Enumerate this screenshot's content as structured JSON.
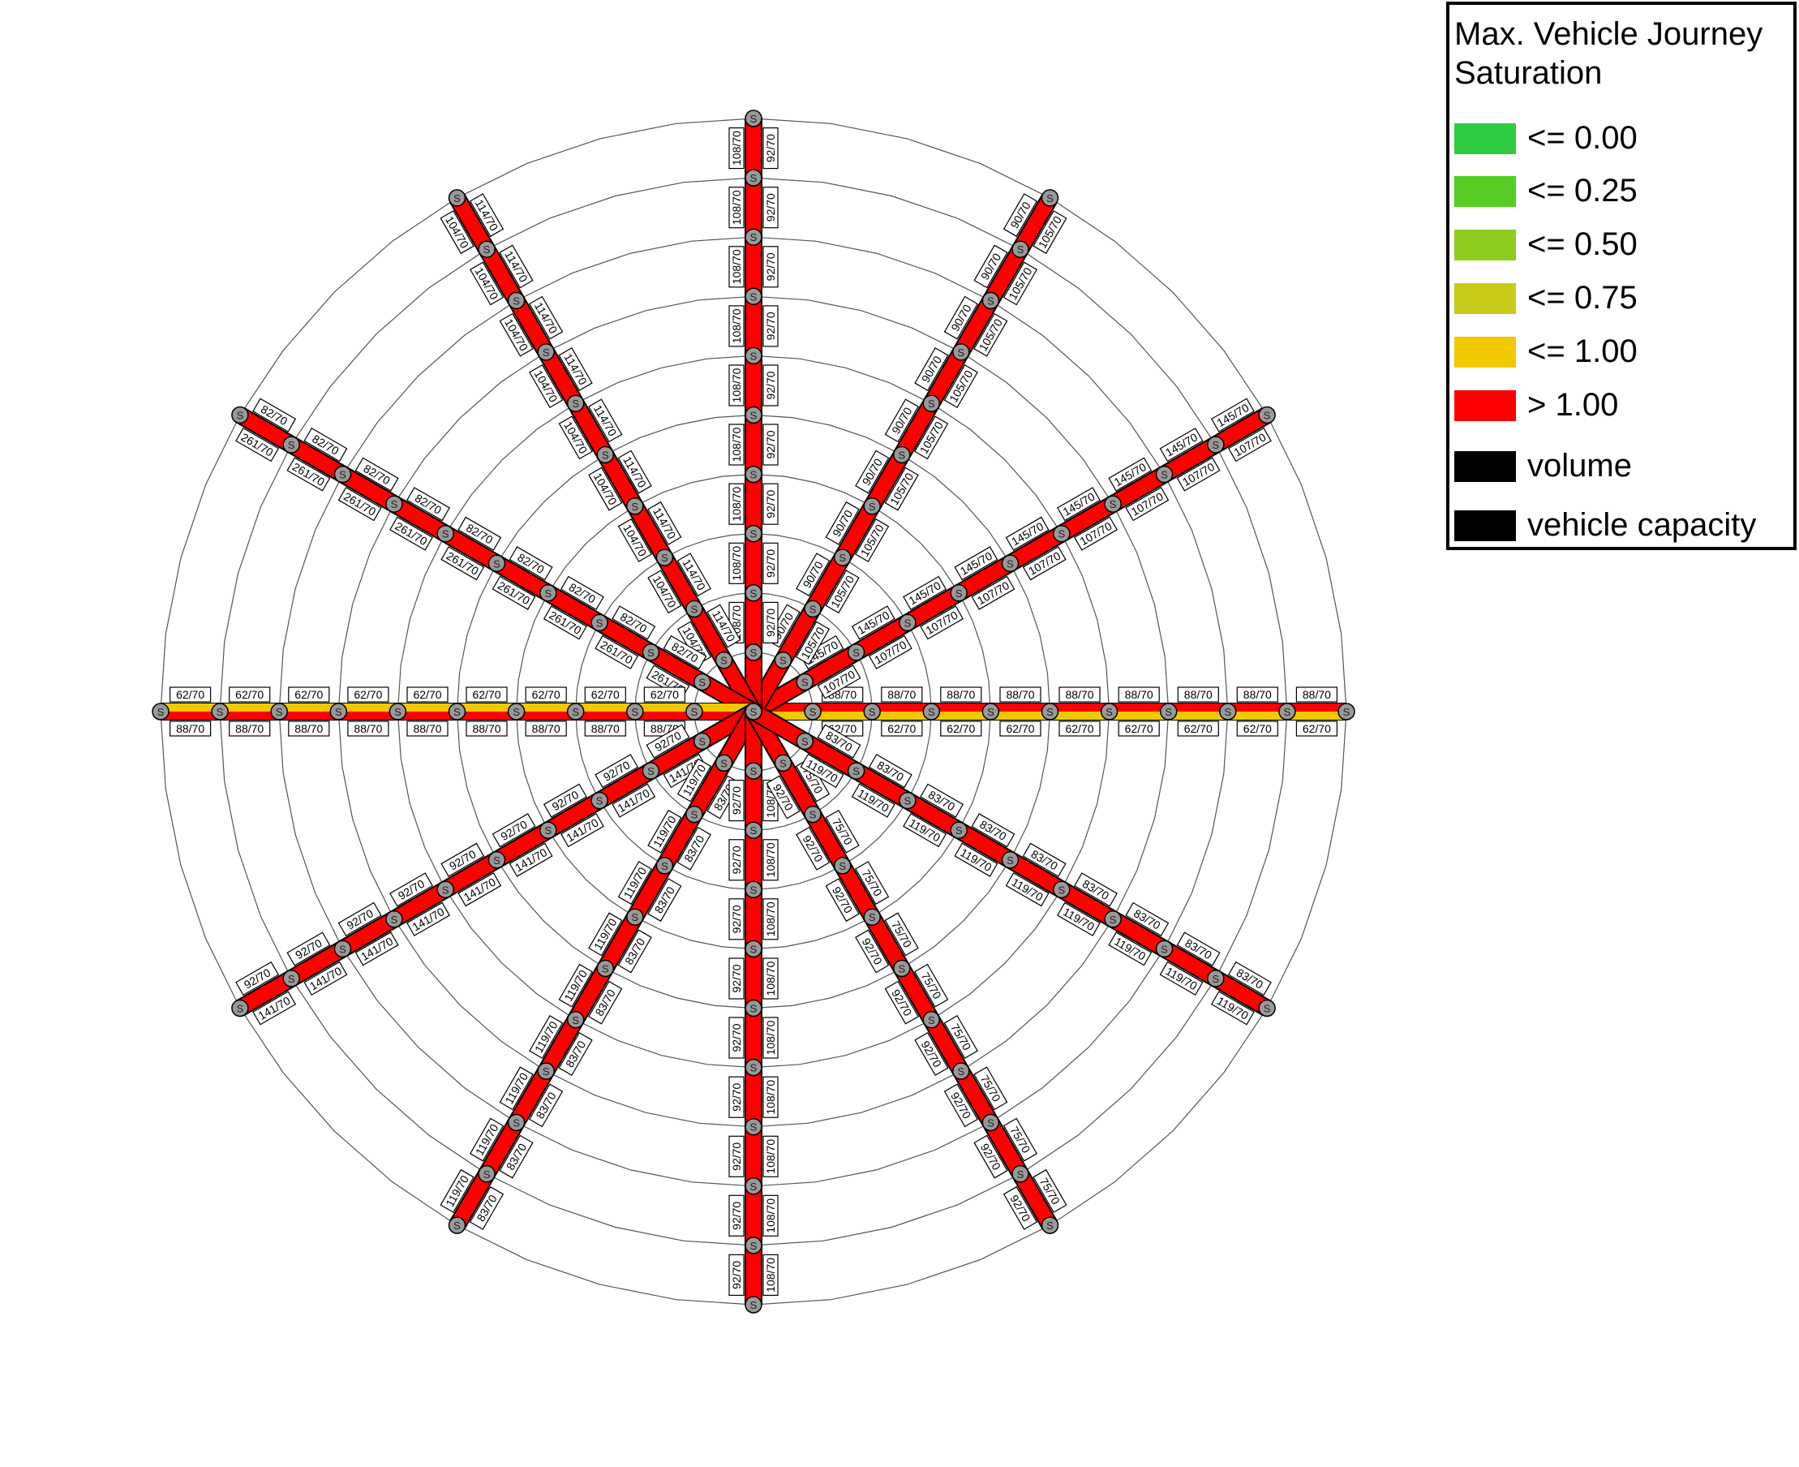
{
  "legend": {
    "title_line1": "Max. Vehicle Journey",
    "title_line2": "Saturation",
    "items": [
      {
        "label": "<= 0.00",
        "color": "#2ecc40"
      },
      {
        "label": "<= 0.25",
        "color": "#55cc22"
      },
      {
        "label": "<= 0.50",
        "color": "#8fcc1e"
      },
      {
        "label": "<= 0.75",
        "color": "#c8cc18"
      },
      {
        "label": "<= 1.00",
        "color": "#f2c800"
      },
      {
        "label": "> 1.00",
        "color": "#ff0000"
      },
      {
        "label": "volume",
        "color": "#000000"
      },
      {
        "label": "vehicle capacity",
        "color": "#000000"
      }
    ]
  },
  "network": {
    "node_symbol": "S",
    "ring_count": 10,
    "spokes": [
      {
        "angle_deg": 0,
        "outer_label": "88/70",
        "inner_label": "62/70",
        "band": "yellow"
      },
      {
        "angle_deg": -30,
        "outer_label": "145/70",
        "inner_label": "107/70",
        "band": "red"
      },
      {
        "angle_deg": -60,
        "outer_label": "90/70",
        "inner_label": "105/70",
        "band": "red"
      },
      {
        "angle_deg": -90,
        "outer_label": "108/70",
        "inner_label": "92/70",
        "band": "red"
      },
      {
        "angle_deg": -120,
        "outer_label": "104/70",
        "inner_label": "114/70",
        "band": "red"
      },
      {
        "angle_deg": -150,
        "outer_label": "261/70",
        "inner_label": "82/70",
        "band": "red"
      },
      {
        "angle_deg": 180,
        "outer_label": "88/70",
        "inner_label": "62/70",
        "band": "yellow"
      },
      {
        "angle_deg": 150,
        "outer_label": "141/70",
        "inner_label": "92/70",
        "band": "red"
      },
      {
        "angle_deg": 120,
        "outer_label": "83/70",
        "inner_label": "119/70",
        "band": "red"
      },
      {
        "angle_deg": 90,
        "outer_label": "108/70",
        "inner_label": "92/70",
        "band": "red"
      },
      {
        "angle_deg": 60,
        "outer_label": "75/70",
        "inner_label": "92/70",
        "band": "red"
      },
      {
        "angle_deg": 30,
        "outer_label": "83/70",
        "inner_label": "119/70",
        "band": "red"
      }
    ]
  }
}
